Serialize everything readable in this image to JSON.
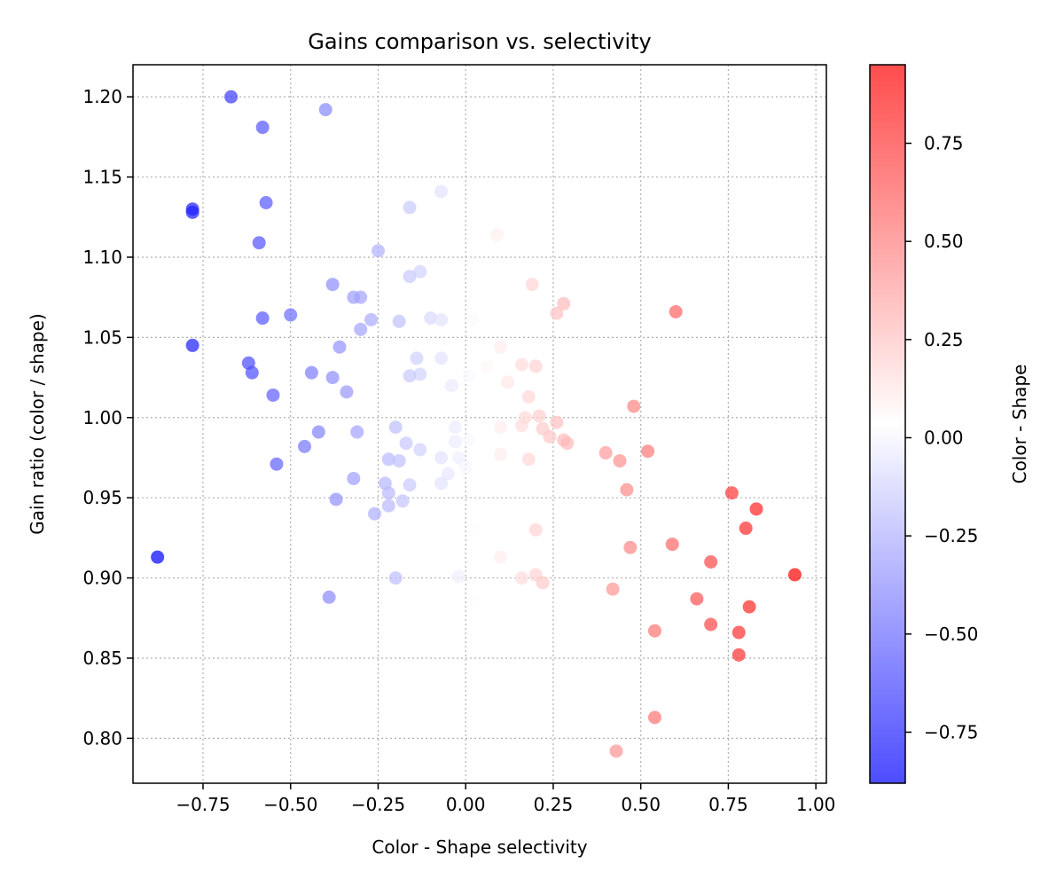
{
  "chart_data": {
    "type": "scatter",
    "title": "Gains comparison vs. selectivity",
    "xlabel": "Color - Shape selectivity",
    "ylabel": "Gain ratio (color / shape)",
    "xlim": [
      -0.95,
      1.03
    ],
    "ylim": [
      0.772,
      1.22
    ],
    "xticks": [
      -0.75,
      -0.5,
      -0.25,
      0.0,
      0.25,
      0.5,
      0.75,
      1.0
    ],
    "xtick_labels": [
      "−0.75",
      "−0.50",
      "−0.25",
      "0.00",
      "0.25",
      "0.50",
      "0.75",
      "1.00"
    ],
    "yticks": [
      0.8,
      0.85,
      0.9,
      0.95,
      1.0,
      1.05,
      1.1,
      1.15,
      1.2
    ],
    "ytick_labels": [
      "0.80",
      "0.85",
      "0.90",
      "0.95",
      "1.00",
      "1.05",
      "1.10",
      "1.15",
      "1.20"
    ],
    "grid": true,
    "colorbar": {
      "label": "Color - Shape",
      "colormap": "bwr",
      "range": [
        -0.88,
        0.95
      ],
      "ticks": [
        -0.75,
        -0.5,
        -0.25,
        0.0,
        0.25,
        0.5,
        0.75
      ],
      "tick_labels": [
        "−0.75",
        "−0.50",
        "−0.25",
        "0.00",
        "0.25",
        "0.50",
        "0.75"
      ]
    },
    "color_low": "#0000ff",
    "color_high": "#ff0000",
    "points": [
      {
        "x": -0.67,
        "y": 1.2
      },
      {
        "x": -0.4,
        "y": 1.192
      },
      {
        "x": -0.58,
        "y": 1.181
      },
      {
        "x": -0.07,
        "y": 1.141
      },
      {
        "x": -0.57,
        "y": 1.134
      },
      {
        "x": -0.16,
        "y": 1.131
      },
      {
        "x": -0.78,
        "y": 1.13
      },
      {
        "x": -0.78,
        "y": 1.128
      },
      {
        "x": 0.09,
        "y": 1.114
      },
      {
        "x": -0.59,
        "y": 1.109
      },
      {
        "x": -0.25,
        "y": 1.104
      },
      {
        "x": -0.13,
        "y": 1.091
      },
      {
        "x": -0.16,
        "y": 1.088
      },
      {
        "x": -0.38,
        "y": 1.083
      },
      {
        "x": 0.19,
        "y": 1.083
      },
      {
        "x": -0.32,
        "y": 1.075
      },
      {
        "x": -0.3,
        "y": 1.075
      },
      {
        "x": 0.28,
        "y": 1.071
      },
      {
        "x": 0.6,
        "y": 1.066
      },
      {
        "x": 0.26,
        "y": 1.065
      },
      {
        "x": -0.5,
        "y": 1.064
      },
      {
        "x": -0.1,
        "y": 1.062
      },
      {
        "x": -0.58,
        "y": 1.062
      },
      {
        "x": -0.07,
        "y": 1.061
      },
      {
        "x": -0.27,
        "y": 1.061
      },
      {
        "x": 0.02,
        "y": 1.061
      },
      {
        "x": -0.19,
        "y": 1.06
      },
      {
        "x": -0.3,
        "y": 1.055
      },
      {
        "x": -0.78,
        "y": 1.045
      },
      {
        "x": -0.36,
        "y": 1.044
      },
      {
        "x": 0.1,
        "y": 1.044
      },
      {
        "x": -0.14,
        "y": 1.037
      },
      {
        "x": -0.07,
        "y": 1.037
      },
      {
        "x": -0.62,
        "y": 1.034
      },
      {
        "x": 0.16,
        "y": 1.033
      },
      {
        "x": 0.2,
        "y": 1.032
      },
      {
        "x": 0.06,
        "y": 1.032
      },
      {
        "x": -0.44,
        "y": 1.028
      },
      {
        "x": -0.61,
        "y": 1.028
      },
      {
        "x": -0.13,
        "y": 1.027
      },
      {
        "x": -0.16,
        "y": 1.026
      },
      {
        "x": 0.01,
        "y": 1.026
      },
      {
        "x": -0.38,
        "y": 1.025
      },
      {
        "x": 0.12,
        "y": 1.022
      },
      {
        "x": -0.04,
        "y": 1.02
      },
      {
        "x": -0.34,
        "y": 1.016
      },
      {
        "x": -0.55,
        "y": 1.014
      },
      {
        "x": 0.18,
        "y": 1.013
      },
      {
        "x": 0.48,
        "y": 1.007
      },
      {
        "x": 0.21,
        "y": 1.001
      },
      {
        "x": 0.17,
        "y": 1.0
      },
      {
        "x": 0.26,
        "y": 0.997
      },
      {
        "x": 0.16,
        "y": 0.995
      },
      {
        "x": -0.2,
        "y": 0.994
      },
      {
        "x": -0.03,
        "y": 0.994
      },
      {
        "x": 0.1,
        "y": 0.994
      },
      {
        "x": 0.22,
        "y": 0.993
      },
      {
        "x": -0.42,
        "y": 0.991
      },
      {
        "x": -0.31,
        "y": 0.991
      },
      {
        "x": 0.24,
        "y": 0.988
      },
      {
        "x": 0.01,
        "y": 0.986
      },
      {
        "x": 0.28,
        "y": 0.986
      },
      {
        "x": -0.03,
        "y": 0.985
      },
      {
        "x": 0.29,
        "y": 0.984
      },
      {
        "x": -0.17,
        "y": 0.984
      },
      {
        "x": -0.46,
        "y": 0.982
      },
      {
        "x": -0.13,
        "y": 0.98
      },
      {
        "x": 0.52,
        "y": 0.979
      },
      {
        "x": 0.4,
        "y": 0.978
      },
      {
        "x": 0.1,
        "y": 0.977
      },
      {
        "x": -0.07,
        "y": 0.975
      },
      {
        "x": -0.02,
        "y": 0.975
      },
      {
        "x": -0.22,
        "y": 0.974
      },
      {
        "x": 0.18,
        "y": 0.974
      },
      {
        "x": 0.44,
        "y": 0.973
      },
      {
        "x": -0.19,
        "y": 0.973
      },
      {
        "x": -0.54,
        "y": 0.971
      },
      {
        "x": 0.0,
        "y": 0.969
      },
      {
        "x": -0.05,
        "y": 0.965
      },
      {
        "x": -0.32,
        "y": 0.962
      },
      {
        "x": -0.23,
        "y": 0.959
      },
      {
        "x": -0.07,
        "y": 0.959
      },
      {
        "x": -0.16,
        "y": 0.958
      },
      {
        "x": 0.46,
        "y": 0.955
      },
      {
        "x": -0.22,
        "y": 0.953
      },
      {
        "x": 0.76,
        "y": 0.953
      },
      {
        "x": -0.37,
        "y": 0.949
      },
      {
        "x": -0.18,
        "y": 0.948
      },
      {
        "x": -0.22,
        "y": 0.945
      },
      {
        "x": 0.83,
        "y": 0.943
      },
      {
        "x": -0.26,
        "y": 0.94
      },
      {
        "x": 0.8,
        "y": 0.931
      },
      {
        "x": 0.2,
        "y": 0.93
      },
      {
        "x": 0.03,
        "y": 0.931
      },
      {
        "x": 0.59,
        "y": 0.921
      },
      {
        "x": 0.47,
        "y": 0.919
      },
      {
        "x": 0.1,
        "y": 0.913
      },
      {
        "x": -0.88,
        "y": 0.913
      },
      {
        "x": 0.7,
        "y": 0.91
      },
      {
        "x": 0.94,
        "y": 0.902
      },
      {
        "x": 0.2,
        "y": 0.902
      },
      {
        "x": -0.02,
        "y": 0.901
      },
      {
        "x": -0.2,
        "y": 0.9
      },
      {
        "x": 0.16,
        "y": 0.9
      },
      {
        "x": 0.22,
        "y": 0.897
      },
      {
        "x": 0.42,
        "y": 0.893
      },
      {
        "x": -0.39,
        "y": 0.888
      },
      {
        "x": 0.66,
        "y": 0.887
      },
      {
        "x": 0.03,
        "y": 0.885
      },
      {
        "x": 0.81,
        "y": 0.882
      },
      {
        "x": 0.7,
        "y": 0.871
      },
      {
        "x": 0.54,
        "y": 0.867
      },
      {
        "x": 0.78,
        "y": 0.866
      },
      {
        "x": 0.78,
        "y": 0.852
      },
      {
        "x": 0.54,
        "y": 0.813
      },
      {
        "x": 0.43,
        "y": 0.792
      }
    ]
  }
}
